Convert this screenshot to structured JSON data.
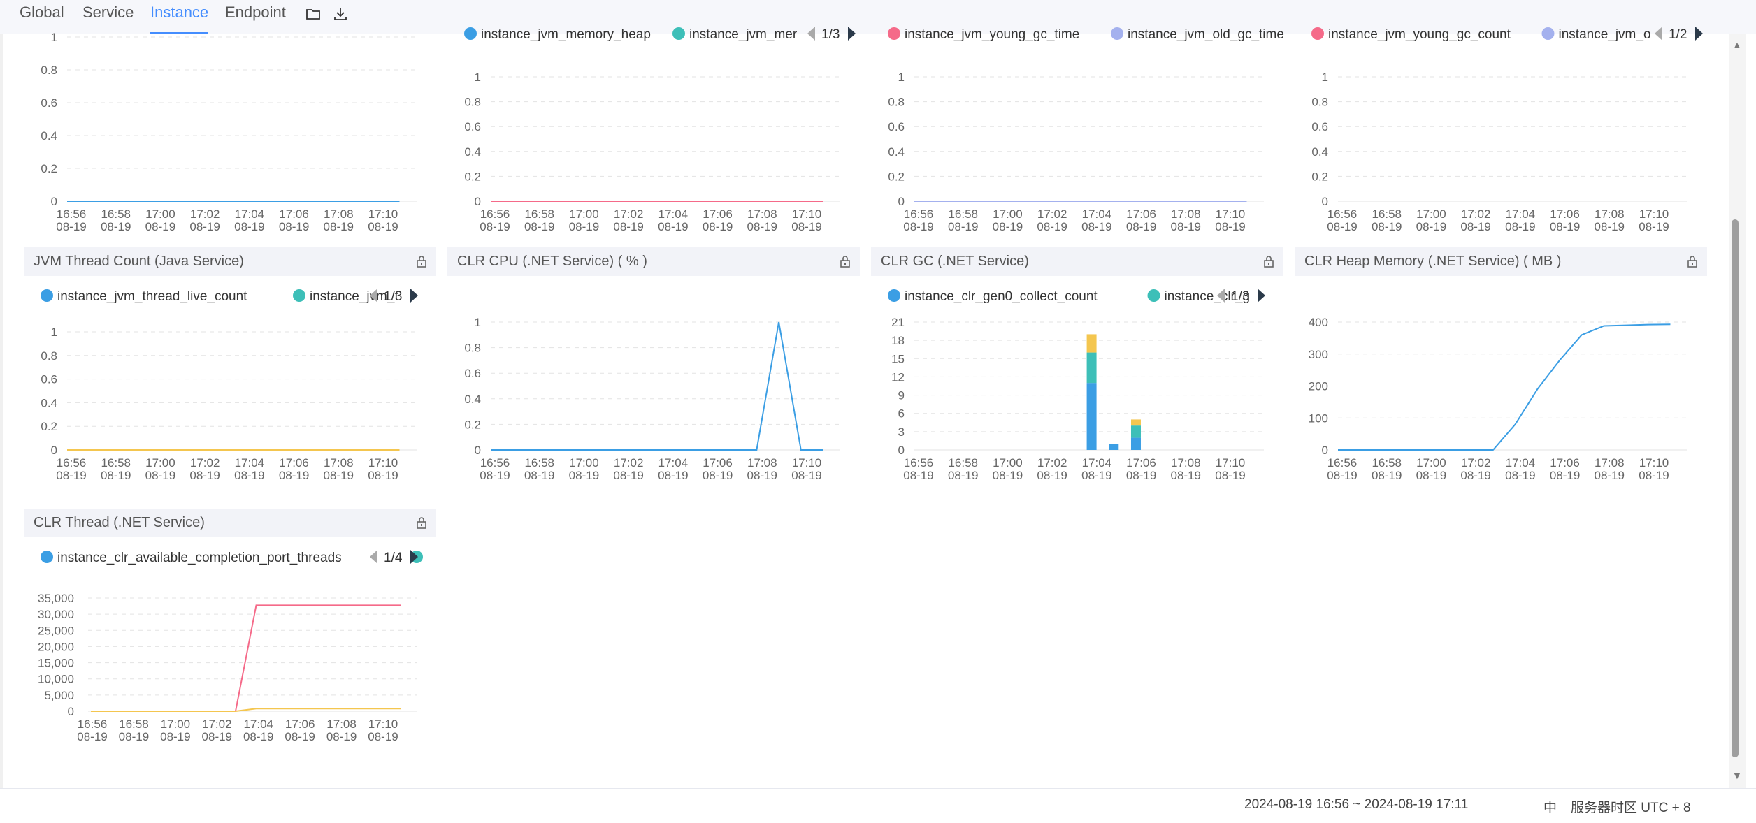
{
  "tabs": [
    {
      "label": "Global",
      "active": false
    },
    {
      "label": "Service",
      "active": false
    },
    {
      "label": "Instance",
      "active": true
    },
    {
      "label": "Endpoint",
      "active": false
    }
  ],
  "icons": {
    "folder": "folder-icon",
    "download": "download-icon",
    "lock": "lock-icon"
  },
  "colors": {
    "accent": "#448dfe",
    "blue": "#3b9ee4",
    "teal": "#3dbfb8",
    "red": "#f56a89",
    "lavender": "#a4b1ee",
    "yellow": "#f4c64f"
  },
  "footer": {
    "range": "2024-08-19 16:56 ~ 2024-08-19 17:11",
    "lang": "中",
    "timezone": "服务器时区 UTC + 8"
  },
  "xticks": [
    [
      "16:56",
      "08-19"
    ],
    [
      "16:58",
      "08-19"
    ],
    [
      "17:00",
      "08-19"
    ],
    [
      "17:02",
      "08-19"
    ],
    [
      "17:04",
      "08-19"
    ],
    [
      "17:06",
      "08-19"
    ],
    [
      "17:08",
      "08-19"
    ],
    [
      "17:10",
      "08-19"
    ]
  ],
  "chart_data": [
    {
      "id": "r1c1",
      "title": "",
      "type": "line",
      "legend": [],
      "pager": "",
      "yticks": [
        "0",
        "0.2",
        "0.4",
        "0.6",
        "0.8",
        "1"
      ],
      "ylim": [
        0,
        1
      ],
      "series": [
        {
          "color": "#3b9ee4",
          "values": [
            0,
            0,
            0,
            0,
            0,
            0,
            0,
            0,
            0,
            0,
            0,
            0,
            0,
            0,
            0,
            0
          ]
        }
      ]
    },
    {
      "id": "r1c2",
      "title": "",
      "type": "line",
      "legend": [
        {
          "name": "instance_jvm_memory_heap",
          "color": "#3b9ee4"
        },
        {
          "name": "instance_jvm_mer",
          "color": "#3dbfb8"
        }
      ],
      "pager": "1/3",
      "yticks": [
        "0",
        "0.2",
        "0.4",
        "0.6",
        "0.8",
        "1"
      ],
      "ylim": [
        0,
        1
      ],
      "series": [
        {
          "color": "#f56a89",
          "values": [
            0,
            0,
            0,
            0,
            0,
            0,
            0,
            0,
            0,
            0,
            0,
            0,
            0,
            0,
            0,
            0
          ]
        }
      ]
    },
    {
      "id": "r1c3",
      "title": "",
      "type": "line",
      "legend": [
        {
          "name": "instance_jvm_young_gc_time",
          "color": "#f56a89"
        },
        {
          "name": "instance_jvm_old_gc_time",
          "color": "#a4b1ee"
        }
      ],
      "pager": "",
      "yticks": [
        "0",
        "0.2",
        "0.4",
        "0.6",
        "0.8",
        "1"
      ],
      "ylim": [
        0,
        1
      ],
      "series": [
        {
          "color": "#a4b1ee",
          "values": [
            0,
            0,
            0,
            0,
            0,
            0,
            0,
            0,
            0,
            0,
            0,
            0,
            0,
            0,
            0,
            0
          ]
        }
      ]
    },
    {
      "id": "r1c4",
      "title": "",
      "type": "line",
      "legend": [
        {
          "name": "instance_jvm_young_gc_count",
          "color": "#f56a89"
        },
        {
          "name": "instance_jvm_o",
          "color": "#a4b1ee"
        }
      ],
      "pager": "1/2",
      "yticks": [
        "0",
        "0.2",
        "0.4",
        "0.6",
        "0.8",
        "1"
      ],
      "ylim": [
        0,
        1
      ],
      "series": []
    },
    {
      "id": "r2c1",
      "title": "JVM Thread Count (Java Service)",
      "type": "line",
      "legend": [
        {
          "name": "instance_jvm_thread_live_count",
          "color": "#3b9ee4"
        },
        {
          "name": "instance_jvm_t",
          "color": "#3dbfb8"
        }
      ],
      "pager": "1/3",
      "yticks": [
        "0",
        "0.2",
        "0.4",
        "0.6",
        "0.8",
        "1"
      ],
      "ylim": [
        0,
        1
      ],
      "series": [
        {
          "color": "#f4c64f",
          "values": [
            0,
            0,
            0,
            0,
            0,
            0,
            0,
            0,
            0,
            0,
            0,
            0,
            0,
            0,
            0,
            0
          ]
        }
      ]
    },
    {
      "id": "r2c2",
      "title": "CLR CPU (.NET Service) ( % )",
      "type": "line",
      "legend": [],
      "pager": "",
      "yticks": [
        "0",
        "0.2",
        "0.4",
        "0.6",
        "0.8",
        "1"
      ],
      "ylim": [
        0,
        1
      ],
      "series": [
        {
          "color": "#3b9ee4",
          "values": [
            0,
            0,
            0,
            0,
            0,
            0,
            0,
            0,
            0,
            0,
            0,
            0,
            0,
            1,
            0,
            0
          ]
        }
      ]
    },
    {
      "id": "r2c3",
      "title": "CLR GC (.NET Service)",
      "type": "bar",
      "legend": [
        {
          "name": "instance_clr_gen0_collect_count",
          "color": "#3b9ee4"
        },
        {
          "name": "instance_clr_g",
          "color": "#3dbfb8"
        }
      ],
      "pager": "1/3",
      "yticks": [
        "0",
        "3",
        "6",
        "9",
        "12",
        "15",
        "18",
        "21"
      ],
      "ylim": [
        0,
        21
      ],
      "bars": [
        {
          "i": 8,
          "segments": [
            {
              "value": 11,
              "color": "#3b9ee4"
            },
            {
              "value": 5,
              "color": "#3dbfb8"
            },
            {
              "value": 3,
              "color": "#f4c64f"
            }
          ]
        },
        {
          "i": 9,
          "segments": [
            {
              "value": 1,
              "color": "#3b9ee4"
            }
          ]
        },
        {
          "i": 10,
          "segments": [
            {
              "value": 2,
              "color": "#3b9ee4"
            },
            {
              "value": 2,
              "color": "#3dbfb8"
            },
            {
              "value": 1,
              "color": "#f4c64f"
            }
          ]
        }
      ]
    },
    {
      "id": "r2c4",
      "title": "CLR Heap Memory (.NET Service) ( MB )",
      "type": "line",
      "legend": [],
      "pager": "",
      "yticks": [
        "0",
        "100",
        "200",
        "300",
        "400"
      ],
      "ylim": [
        0,
        400
      ],
      "series": [
        {
          "color": "#3b9ee4",
          "values": [
            0,
            0,
            0,
            0,
            0,
            0,
            0,
            0,
            80,
            190,
            280,
            360,
            388,
            390,
            392,
            393
          ]
        }
      ]
    },
    {
      "id": "r3c1",
      "title": "CLR Thread (.NET Service)",
      "type": "line",
      "legend": [
        {
          "name": "instance_clr_available_completion_port_threads",
          "color": "#3b9ee4"
        },
        {
          "name": "",
          "color": "#3dbfb8"
        }
      ],
      "pager": "1/4",
      "yticks": [
        "0",
        "5,000",
        "10,000",
        "15,000",
        "20,000",
        "25,000",
        "30,000",
        "35,000"
      ],
      "ylim": [
        0,
        35000
      ],
      "series": [
        {
          "color": "#f56a89",
          "values": [
            0,
            0,
            0,
            0,
            0,
            0,
            0,
            0,
            32767,
            32767,
            32767,
            32767,
            32767,
            32767,
            32767,
            32767
          ]
        },
        {
          "color": "#f4c64f",
          "values": [
            0,
            0,
            0,
            0,
            0,
            0,
            0,
            0,
            800,
            800,
            800,
            800,
            800,
            800,
            800,
            800
          ]
        }
      ]
    }
  ]
}
